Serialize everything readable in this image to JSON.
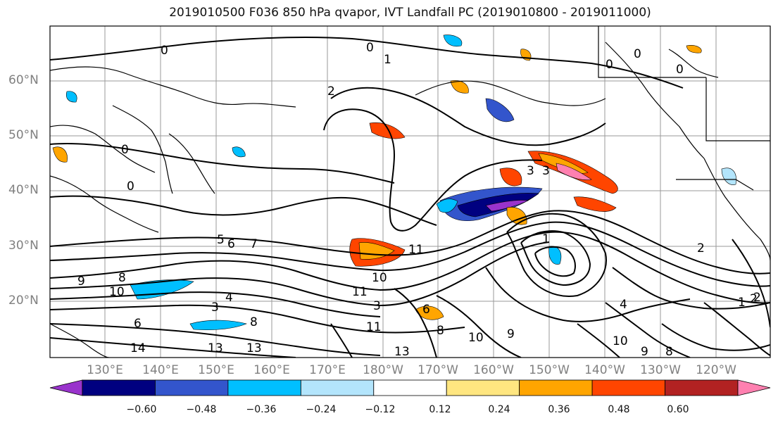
{
  "title": "2019010500 F036 850 hPa qvapor, IVT Landfall PC (2019010800 - 2019011000)",
  "lat_labels": [
    "60°N",
    "50°N",
    "40°N",
    "30°N",
    "20°N"
  ],
  "lon_labels": [
    "130°E",
    "140°E",
    "150°E",
    "160°E",
    "170°E",
    "180°W",
    "170°W",
    "160°W",
    "150°W",
    "140°W",
    "130°W",
    "120°W"
  ],
  "colorbar": {
    "colors": [
      "#9933cc",
      "#000080",
      "#3355cc",
      "#00bfff",
      "#b3e5fc",
      "#ffffff",
      "#ffe680",
      "#ffa500",
      "#ff4500",
      "#b22222",
      "#ff80b0"
    ],
    "labels": [
      "−0.60",
      "−0.48",
      "−0.36",
      "−0.24",
      "−0.12",
      "0.12",
      "0.24",
      "0.36",
      "0.48",
      "0.60"
    ]
  },
  "contour_labels": [
    "0",
    "0",
    "1",
    "2",
    "3",
    "3",
    "0",
    "0",
    "0",
    "0",
    "0",
    "5",
    "6",
    "7",
    "8",
    "9",
    "10",
    "11",
    "3",
    "4",
    "6",
    "8",
    "11",
    "10",
    "13",
    "13",
    "14",
    "11",
    "13",
    "10",
    "9",
    "1",
    "2",
    "2",
    "4",
    "3",
    "6",
    "8",
    "9",
    "10",
    "1",
    "2",
    "8"
  ]
}
